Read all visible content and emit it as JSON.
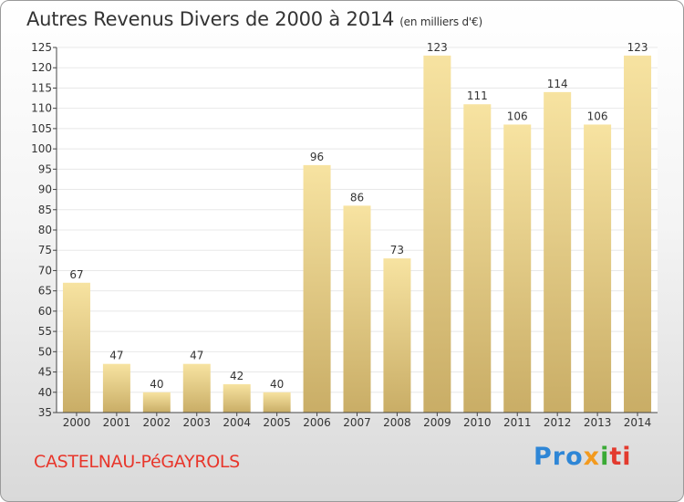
{
  "header": {
    "title": "Autres Revenus Divers de 2000 à 2014",
    "unit": "(en milliers d'€)"
  },
  "footer": {
    "place": "CASTELNAU-PéGAYROLS",
    "logo": [
      "Pro",
      "x",
      "i",
      "ti"
    ]
  },
  "colors": {
    "bar_light": "#f7e3a1",
    "bar_dark": "#c9ad66",
    "axis": "#444444",
    "grid": "#e8e8e8",
    "place": "#e8362b"
  },
  "chart_data": {
    "type": "bar",
    "title": "Autres Revenus Divers de 2000 à 2014",
    "subtitle": "(en milliers d'€)",
    "categories": [
      "2000",
      "2001",
      "2002",
      "2003",
      "2004",
      "2005",
      "2006",
      "2007",
      "2008",
      "2009",
      "2010",
      "2011",
      "2012",
      "2013",
      "2014"
    ],
    "values": [
      67,
      47,
      40,
      47,
      42,
      40,
      96,
      86,
      73,
      123,
      111,
      106,
      114,
      106,
      123
    ],
    "ylim": [
      35,
      125
    ],
    "yticks": [
      35,
      40,
      45,
      50,
      55,
      60,
      65,
      70,
      75,
      80,
      85,
      90,
      95,
      100,
      105,
      110,
      115,
      120,
      125
    ],
    "grid": true,
    "data_labels": true
  }
}
